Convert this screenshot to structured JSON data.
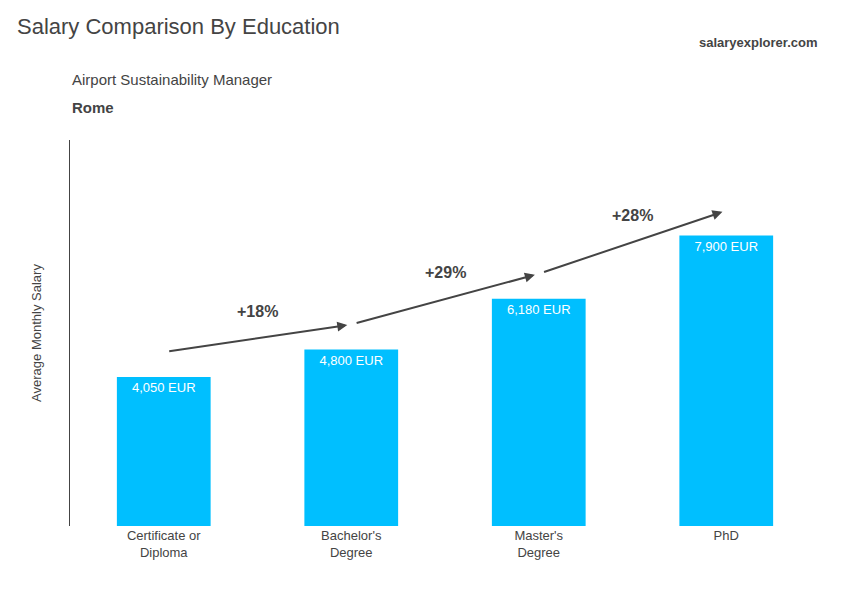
{
  "chart_data": {
    "type": "bar",
    "title": "Salary Comparison By Education",
    "subtitle": "Airport Sustainability Manager",
    "ylabel": "Average Monthly Salary",
    "categories": [
      "Certificate or\nDiploma",
      "Bachelor's\nDegree",
      "Master's\nDegree",
      "PhD"
    ],
    "values": [
      4050,
      4800,
      6180,
      7900
    ],
    "value_labels": [
      "4,050 EUR",
      "4,800 EUR",
      "6,180 EUR",
      "7,900 EUR"
    ],
    "data_labels": true,
    "color": "#00BFFF",
    "ylim": [
      0,
      10500
    ],
    "grid": false,
    "tick_labels": "x",
    "annotations": [
      {
        "text": "Rome"
      },
      {
        "text": "salaryexplorer.com"
      },
      {
        "text": "+18%",
        "from": 0,
        "to": 1
      },
      {
        "text": "+29%",
        "from": 1,
        "to": 2
      },
      {
        "text": "+28%",
        "from": 2,
        "to": 3
      }
    ]
  }
}
